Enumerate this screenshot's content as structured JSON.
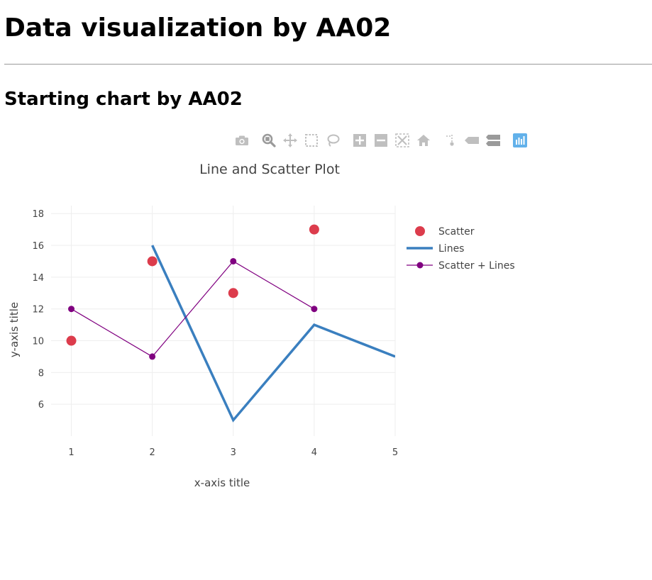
{
  "page": {
    "heading": "Data visualization by AA02",
    "subheading": "Starting chart by AA02"
  },
  "modebar": {
    "groups": [
      [
        "camera-icon"
      ],
      [
        "zoom-icon",
        "pan-icon",
        "box-select-icon",
        "lasso-select-icon"
      ],
      [
        "zoom-in-icon",
        "zoom-out-icon",
        "autoscale-icon",
        "reset-axes-icon"
      ],
      [
        "spike-lines-icon",
        "hover-closest-icon",
        "hover-compare-icon"
      ],
      [
        "plotly-logo-icon"
      ]
    ],
    "icon_color": "#bfbfbf",
    "logo_color": "#62b1ea"
  },
  "chart_data": {
    "type": "line",
    "title": "Line and Scatter Plot",
    "xlabel": "x-axis title",
    "ylabel": "y-axis title",
    "xlim": [
      0.75,
      5
    ],
    "ylim": [
      4,
      18.5
    ],
    "xticks": [
      1,
      2,
      3,
      4,
      5
    ],
    "yticks": [
      6,
      8,
      10,
      12,
      14,
      16,
      18
    ],
    "grid": true,
    "legend_position": "top-right",
    "series": [
      {
        "name": "Scatter",
        "mode": "markers",
        "color": "#dc3c4c",
        "x": [
          1,
          2,
          3,
          4
        ],
        "y": [
          10,
          15,
          13,
          17
        ]
      },
      {
        "name": "Lines",
        "mode": "lines",
        "color": "#3a7fbf",
        "x": [
          2,
          3,
          4,
          5
        ],
        "y": [
          16,
          5,
          11,
          9
        ]
      },
      {
        "name": "Scatter + Lines",
        "mode": "lines+markers",
        "color": "#800080",
        "x": [
          1,
          2,
          3,
          4
        ],
        "y": [
          12,
          9,
          15,
          12
        ]
      }
    ]
  }
}
